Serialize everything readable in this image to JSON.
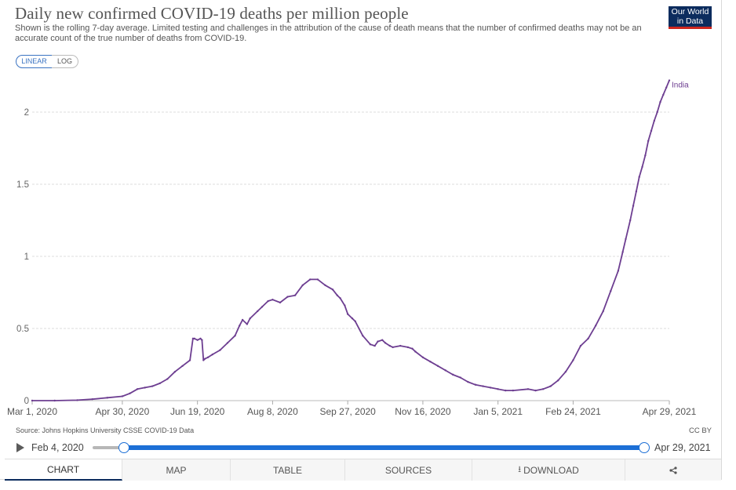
{
  "header": {
    "title": "Daily new confirmed COVID-19 deaths per million people",
    "subtitle": "Shown is the rolling 7-day average. Limited testing and challenges in the attribution of the cause of death means that the number of confirmed deaths may not be an accurate count of the true number of deaths from COVID-19.",
    "logo_line1": "Our World",
    "logo_line2": "in Data"
  },
  "scale_toggle": {
    "linear_label": "LINEAR",
    "log_label": "LOG",
    "selected": "LINEAR"
  },
  "chart_data": {
    "type": "line",
    "title": "Daily new confirmed COVID-19 deaths per million people",
    "xlabel": "",
    "ylabel": "",
    "ylim": [
      0,
      2.3
    ],
    "yticks": [
      0,
      0.5,
      1,
      1.5,
      2
    ],
    "ytick_labels": [
      "0",
      "0.5",
      "1",
      "1.5",
      "2"
    ],
    "xticks": [
      0,
      60,
      110,
      160,
      210,
      260,
      310,
      360,
      424
    ],
    "xtick_labels": [
      "Mar 1, 2020",
      "Apr 30, 2020",
      "Jun 19, 2020",
      "Aug 8, 2020",
      "Sep 27, 2020",
      "Nov 16, 2020",
      "Jan 5, 2021",
      "Feb 24, 2021",
      "Apr 29, 2021"
    ],
    "x_unit": "days since Mar 1, 2020",
    "grid": true,
    "line_color": "#6d3e91",
    "series": [
      {
        "name": "India",
        "x": [
          0,
          15,
          30,
          40,
          50,
          60,
          65,
          70,
          75,
          80,
          85,
          90,
          95,
          100,
          105,
          107,
          108,
          110,
          112,
          113,
          114,
          115,
          117,
          120,
          125,
          130,
          135,
          138,
          140,
          143,
          145,
          150,
          153,
          157,
          160,
          165,
          170,
          175,
          180,
          185,
          190,
          195,
          200,
          203,
          205,
          208,
          210,
          213,
          215,
          220,
          225,
          228,
          230,
          233,
          235,
          238,
          240,
          245,
          250,
          253,
          255,
          260,
          265,
          270,
          275,
          280,
          285,
          290,
          295,
          300,
          305,
          310,
          315,
          320,
          330,
          335,
          340,
          345,
          350,
          355,
          360,
          365,
          370,
          375,
          380,
          385,
          390,
          393,
          395,
          398,
          400,
          402,
          404,
          406,
          408,
          410,
          412,
          414,
          416,
          418,
          420,
          422,
          424
        ],
        "values": [
          0.0,
          0.0,
          0.003,
          0.01,
          0.02,
          0.03,
          0.05,
          0.08,
          0.09,
          0.1,
          0.12,
          0.15,
          0.2,
          0.24,
          0.28,
          0.43,
          0.43,
          0.42,
          0.43,
          0.42,
          0.28,
          0.29,
          0.3,
          0.32,
          0.35,
          0.4,
          0.45,
          0.52,
          0.56,
          0.53,
          0.57,
          0.62,
          0.65,
          0.69,
          0.7,
          0.68,
          0.72,
          0.73,
          0.8,
          0.84,
          0.84,
          0.8,
          0.77,
          0.73,
          0.71,
          0.66,
          0.6,
          0.57,
          0.55,
          0.45,
          0.39,
          0.38,
          0.41,
          0.42,
          0.4,
          0.38,
          0.37,
          0.38,
          0.37,
          0.36,
          0.34,
          0.3,
          0.27,
          0.24,
          0.21,
          0.18,
          0.16,
          0.13,
          0.11,
          0.1,
          0.09,
          0.08,
          0.07,
          0.07,
          0.08,
          0.07,
          0.08,
          0.1,
          0.14,
          0.2,
          0.28,
          0.38,
          0.43,
          0.52,
          0.62,
          0.76,
          0.9,
          1.03,
          1.12,
          1.25,
          1.35,
          1.45,
          1.55,
          1.62,
          1.7,
          1.8,
          1.87,
          1.94,
          2.0,
          2.07,
          2.12,
          2.17,
          2.22
        ]
      }
    ],
    "line_label": "India"
  },
  "footer": {
    "source": "Source: Johns Hopkins University CSSE COVID-19 Data",
    "license": "CC BY"
  },
  "timeline": {
    "start_label": "Feb 4, 2020",
    "end_label": "Apr 29, 2021"
  },
  "tabs": {
    "chart": "CHART",
    "map": "MAP",
    "table": "TABLE",
    "sources": "SOURCES",
    "download": "DOWNLOAD"
  }
}
